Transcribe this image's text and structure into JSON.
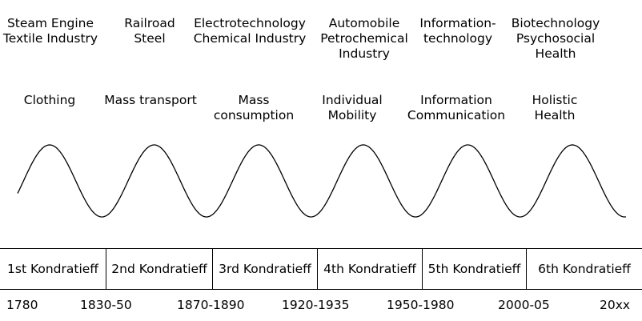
{
  "industries": [
    [
      "Steam Engine",
      "Textile Industry"
    ],
    [
      "Railroad",
      "Steel"
    ],
    [
      "Electrotechnology",
      "Chemical Industry"
    ],
    [
      "Automobile",
      "Petrochemical",
      "Industry"
    ],
    [
      "Information-",
      "technology"
    ],
    [
      "Biotechnology",
      "Psychosocial",
      "Health"
    ]
  ],
  "needs": [
    [
      "Clothing"
    ],
    [
      "Mass transport"
    ],
    [
      "Mass",
      "consumption"
    ],
    [
      "Individual",
      "Mobility"
    ],
    [
      "Information",
      "Communication"
    ],
    [
      "Holistic",
      "Health"
    ]
  ],
  "waves": [
    "1st Kondratieff",
    "2nd Kondratieff",
    "3rd Kondratieff",
    "4th Kondratieff",
    "5th Kondratieff",
    "6th Kondratieff"
  ],
  "years": [
    "1780",
    "1830-50",
    "1870-1890",
    "1920-1935",
    "1950-1980",
    "2000-05",
    "20xx"
  ]
}
